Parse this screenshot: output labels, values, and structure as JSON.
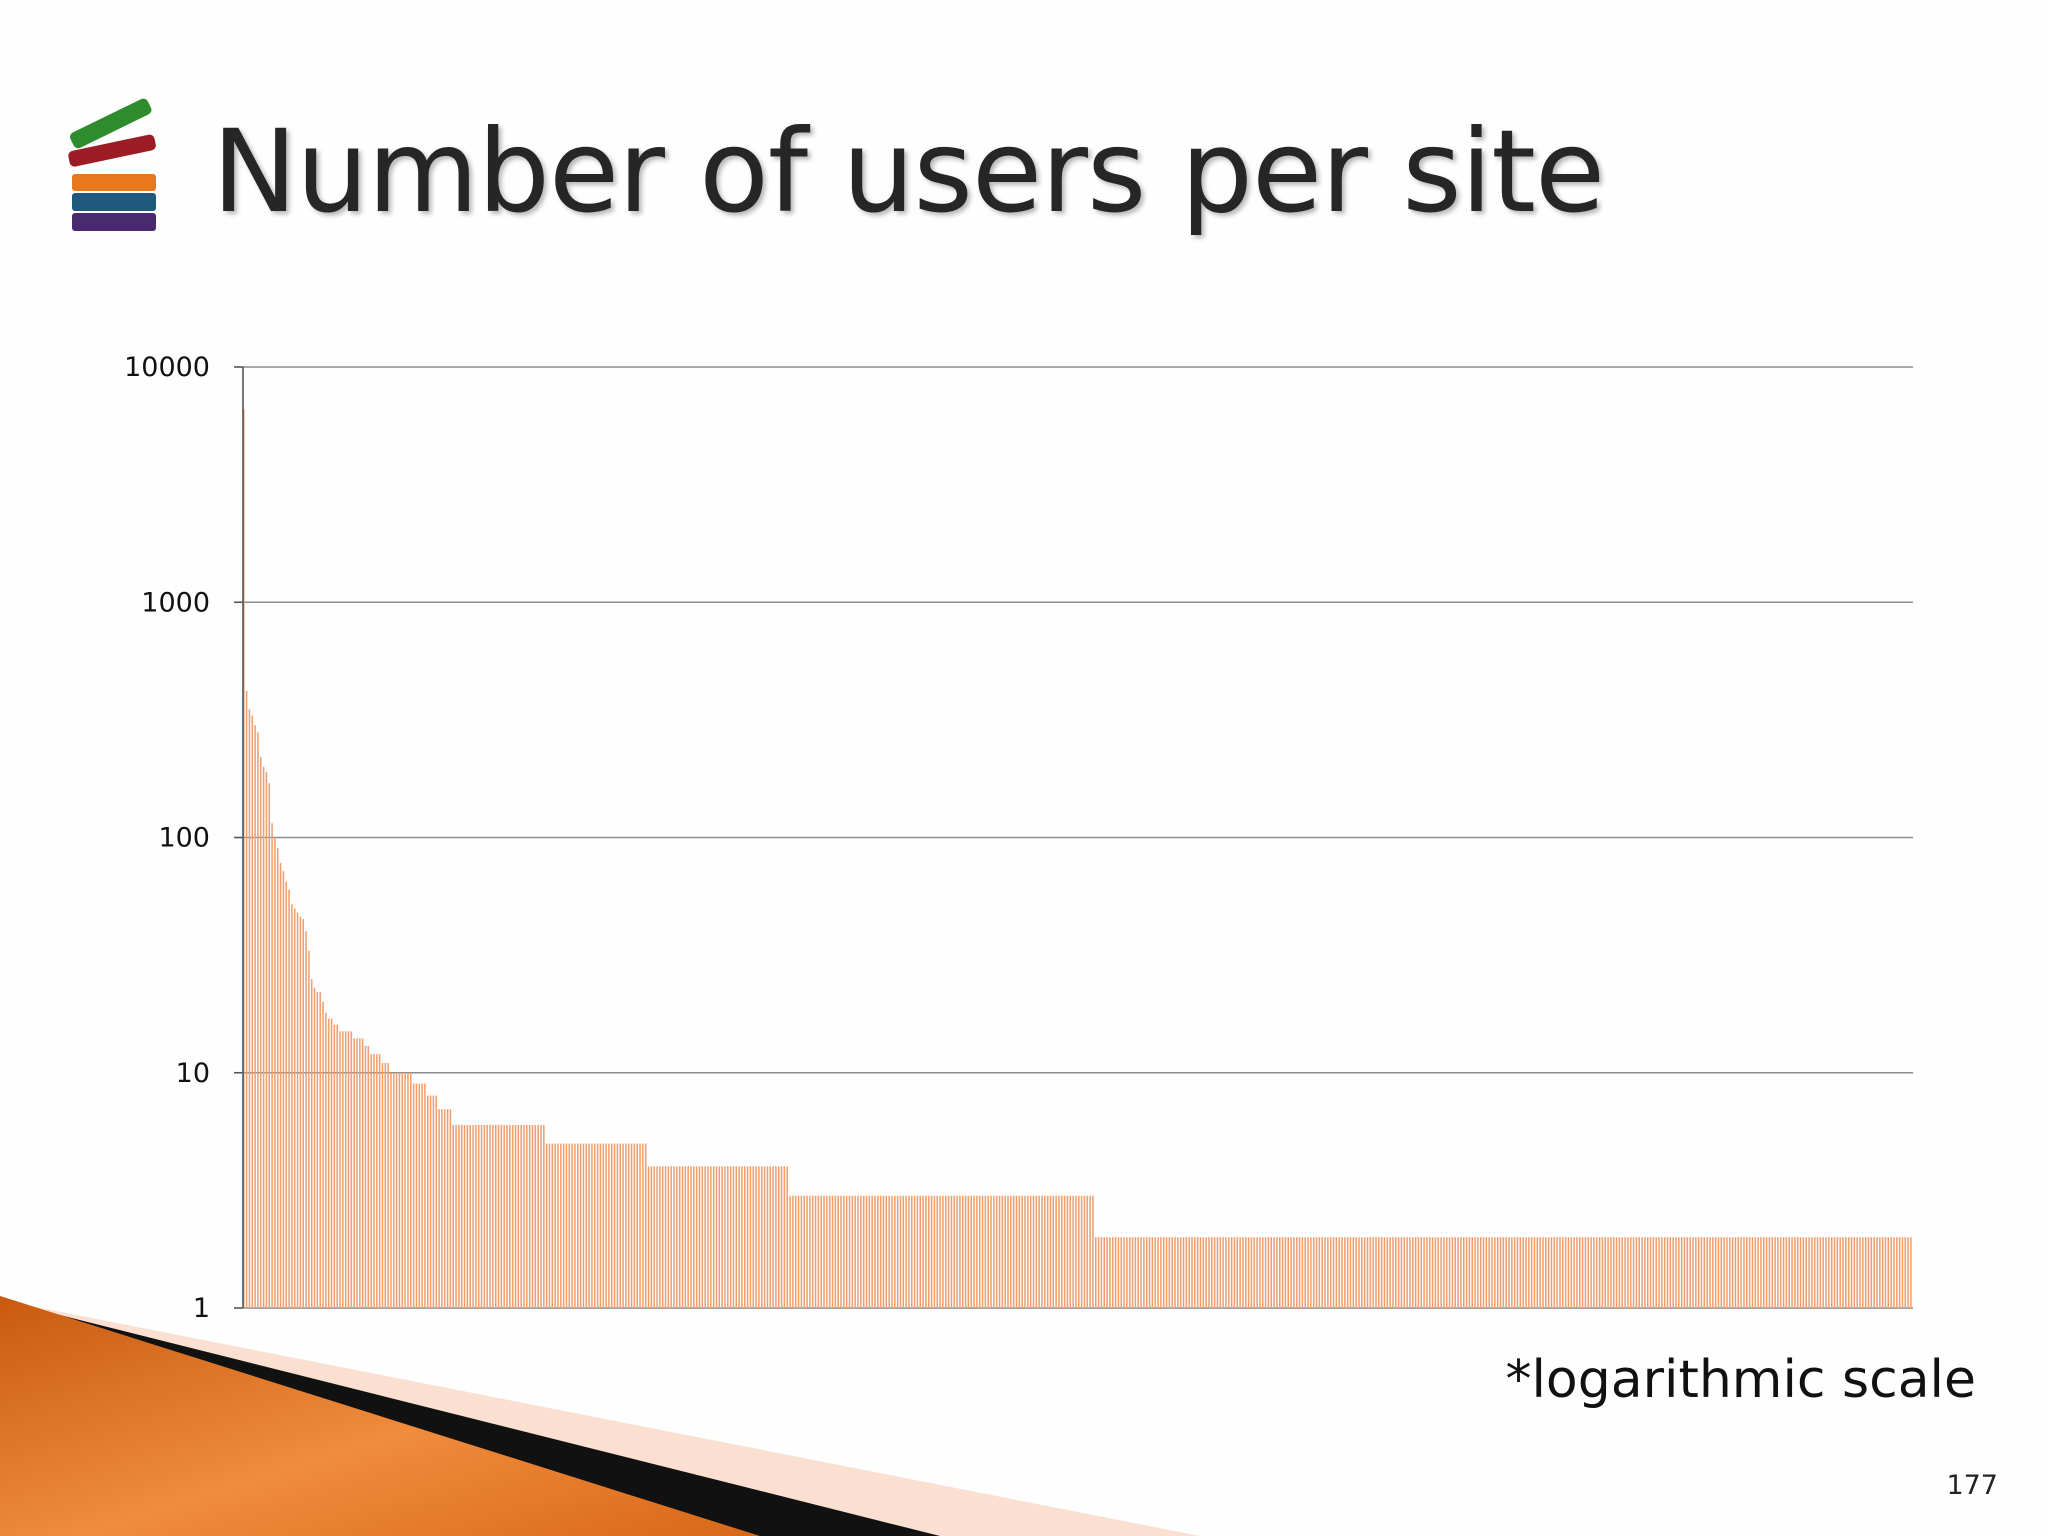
{
  "slide": {
    "title": "Number of users per site",
    "note": "*logarithmic scale",
    "page_number": "177"
  },
  "logo": {
    "icon": "stacked-books-icon",
    "colors": [
      "#2e8b2e",
      "#9b1c24",
      "#e8781e",
      "#1f5a7e",
      "#4a2a6e"
    ]
  },
  "colors": {
    "bar": "#f0a070",
    "gridline": "#8c8c8c",
    "axis": "#555555",
    "accent_orange": "#e8761c",
    "accent_black": "#111111",
    "accent_peach": "#fbe0d2"
  },
  "chart_data": {
    "type": "bar",
    "title": "",
    "xlabel": "",
    "ylabel": "",
    "yscale": "log",
    "ylim": [
      1,
      10000
    ],
    "yticks": [
      "10000",
      "1000",
      "100",
      "10",
      "1"
    ],
    "grid": true,
    "legend": "none",
    "series": [
      {
        "head_values": [
          6600,
          420,
          350,
          330,
          300,
          280,
          220,
          200,
          190,
          170,
          115,
          100,
          90,
          78,
          72,
          65,
          60,
          52,
          50,
          48,
          46,
          45,
          40,
          33,
          25,
          23,
          22,
          22,
          20,
          18,
          17,
          17,
          16,
          16,
          15,
          15,
          15,
          15,
          15,
          14,
          14,
          14,
          14,
          13,
          13,
          12,
          12,
          12,
          12,
          11,
          11,
          11,
          10,
          10,
          10,
          10,
          10,
          10,
          10,
          10,
          9,
          9,
          9,
          9,
          9,
          8,
          8,
          8,
          8,
          7,
          7,
          7,
          7,
          7
        ],
        "tail_runs": [
          {
            "value": 6,
            "count": 33
          },
          {
            "value": 5,
            "count": 36
          },
          {
            "value": 4,
            "count": 50
          },
          {
            "value": 3,
            "count": 108
          },
          {
            "value": 2,
            "count": 289
          }
        ]
      }
    ]
  }
}
